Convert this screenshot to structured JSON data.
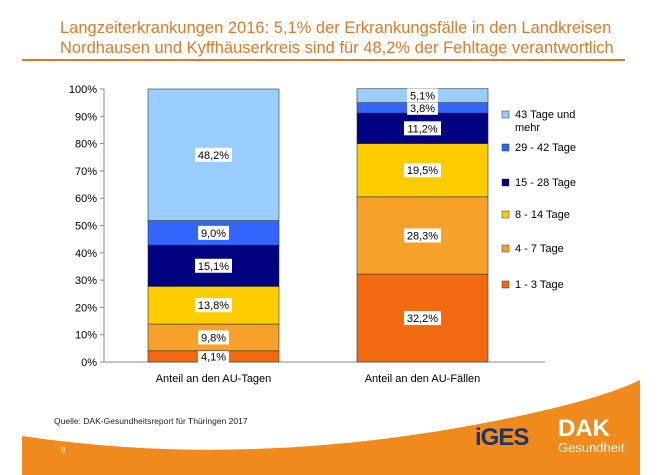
{
  "header": {
    "title": "Langzeiterkrankungen 2016: 5,1% der Erkrankungsfälle in den Landkreisen Nordhausen und Kyffhäuserkreis sind für 48,2% der Fehltage verantwortlich"
  },
  "footer": {
    "source": "Quelle: DAK-Gesundheitsreport für Thüringen 2017",
    "page": "8",
    "logo_iges": "iGES",
    "logo_dak": "DAK",
    "logo_dak_sub": "Gesundheit",
    "accent": "#f08a1c"
  },
  "chart_data": {
    "type": "bar",
    "stacked": true,
    "categories": [
      "Anteil an den AU-Tagen",
      "Anteil an den AU-Fällen"
    ],
    "ylim": [
      0,
      100
    ],
    "yticks": [
      "0%",
      "10%",
      "20%",
      "30%",
      "40%",
      "50%",
      "60%",
      "70%",
      "80%",
      "90%",
      "100%"
    ],
    "legend_position": "right",
    "series": [
      {
        "name": "1 - 3 Tage",
        "color": "#f26a10",
        "values": [
          4.1,
          32.2
        ],
        "labels": [
          "4,1%",
          "32,2%"
        ]
      },
      {
        "name": "4 - 7 Tage",
        "color": "#f7a12a",
        "values": [
          9.8,
          28.3
        ],
        "labels": [
          "9,8%",
          "28,3%"
        ]
      },
      {
        "name": "8 - 14 Tage",
        "color": "#ffcc00",
        "values": [
          13.8,
          19.5
        ],
        "labels": [
          "13,8%",
          "19,5%"
        ]
      },
      {
        "name": "15 - 28 Tage",
        "color": "#000080",
        "values": [
          15.1,
          11.2
        ],
        "labels": [
          "15,1%",
          "11,2%"
        ]
      },
      {
        "name": "29 - 42 Tage",
        "color": "#3366ff",
        "values": [
          9.0,
          3.8
        ],
        "labels": [
          "9,0%",
          "3,8%"
        ]
      },
      {
        "name": "43 Tage und mehr",
        "color": "#99ccff",
        "values": [
          48.2,
          5.1
        ],
        "labels": [
          "48,2%",
          "5,1%"
        ]
      }
    ]
  }
}
